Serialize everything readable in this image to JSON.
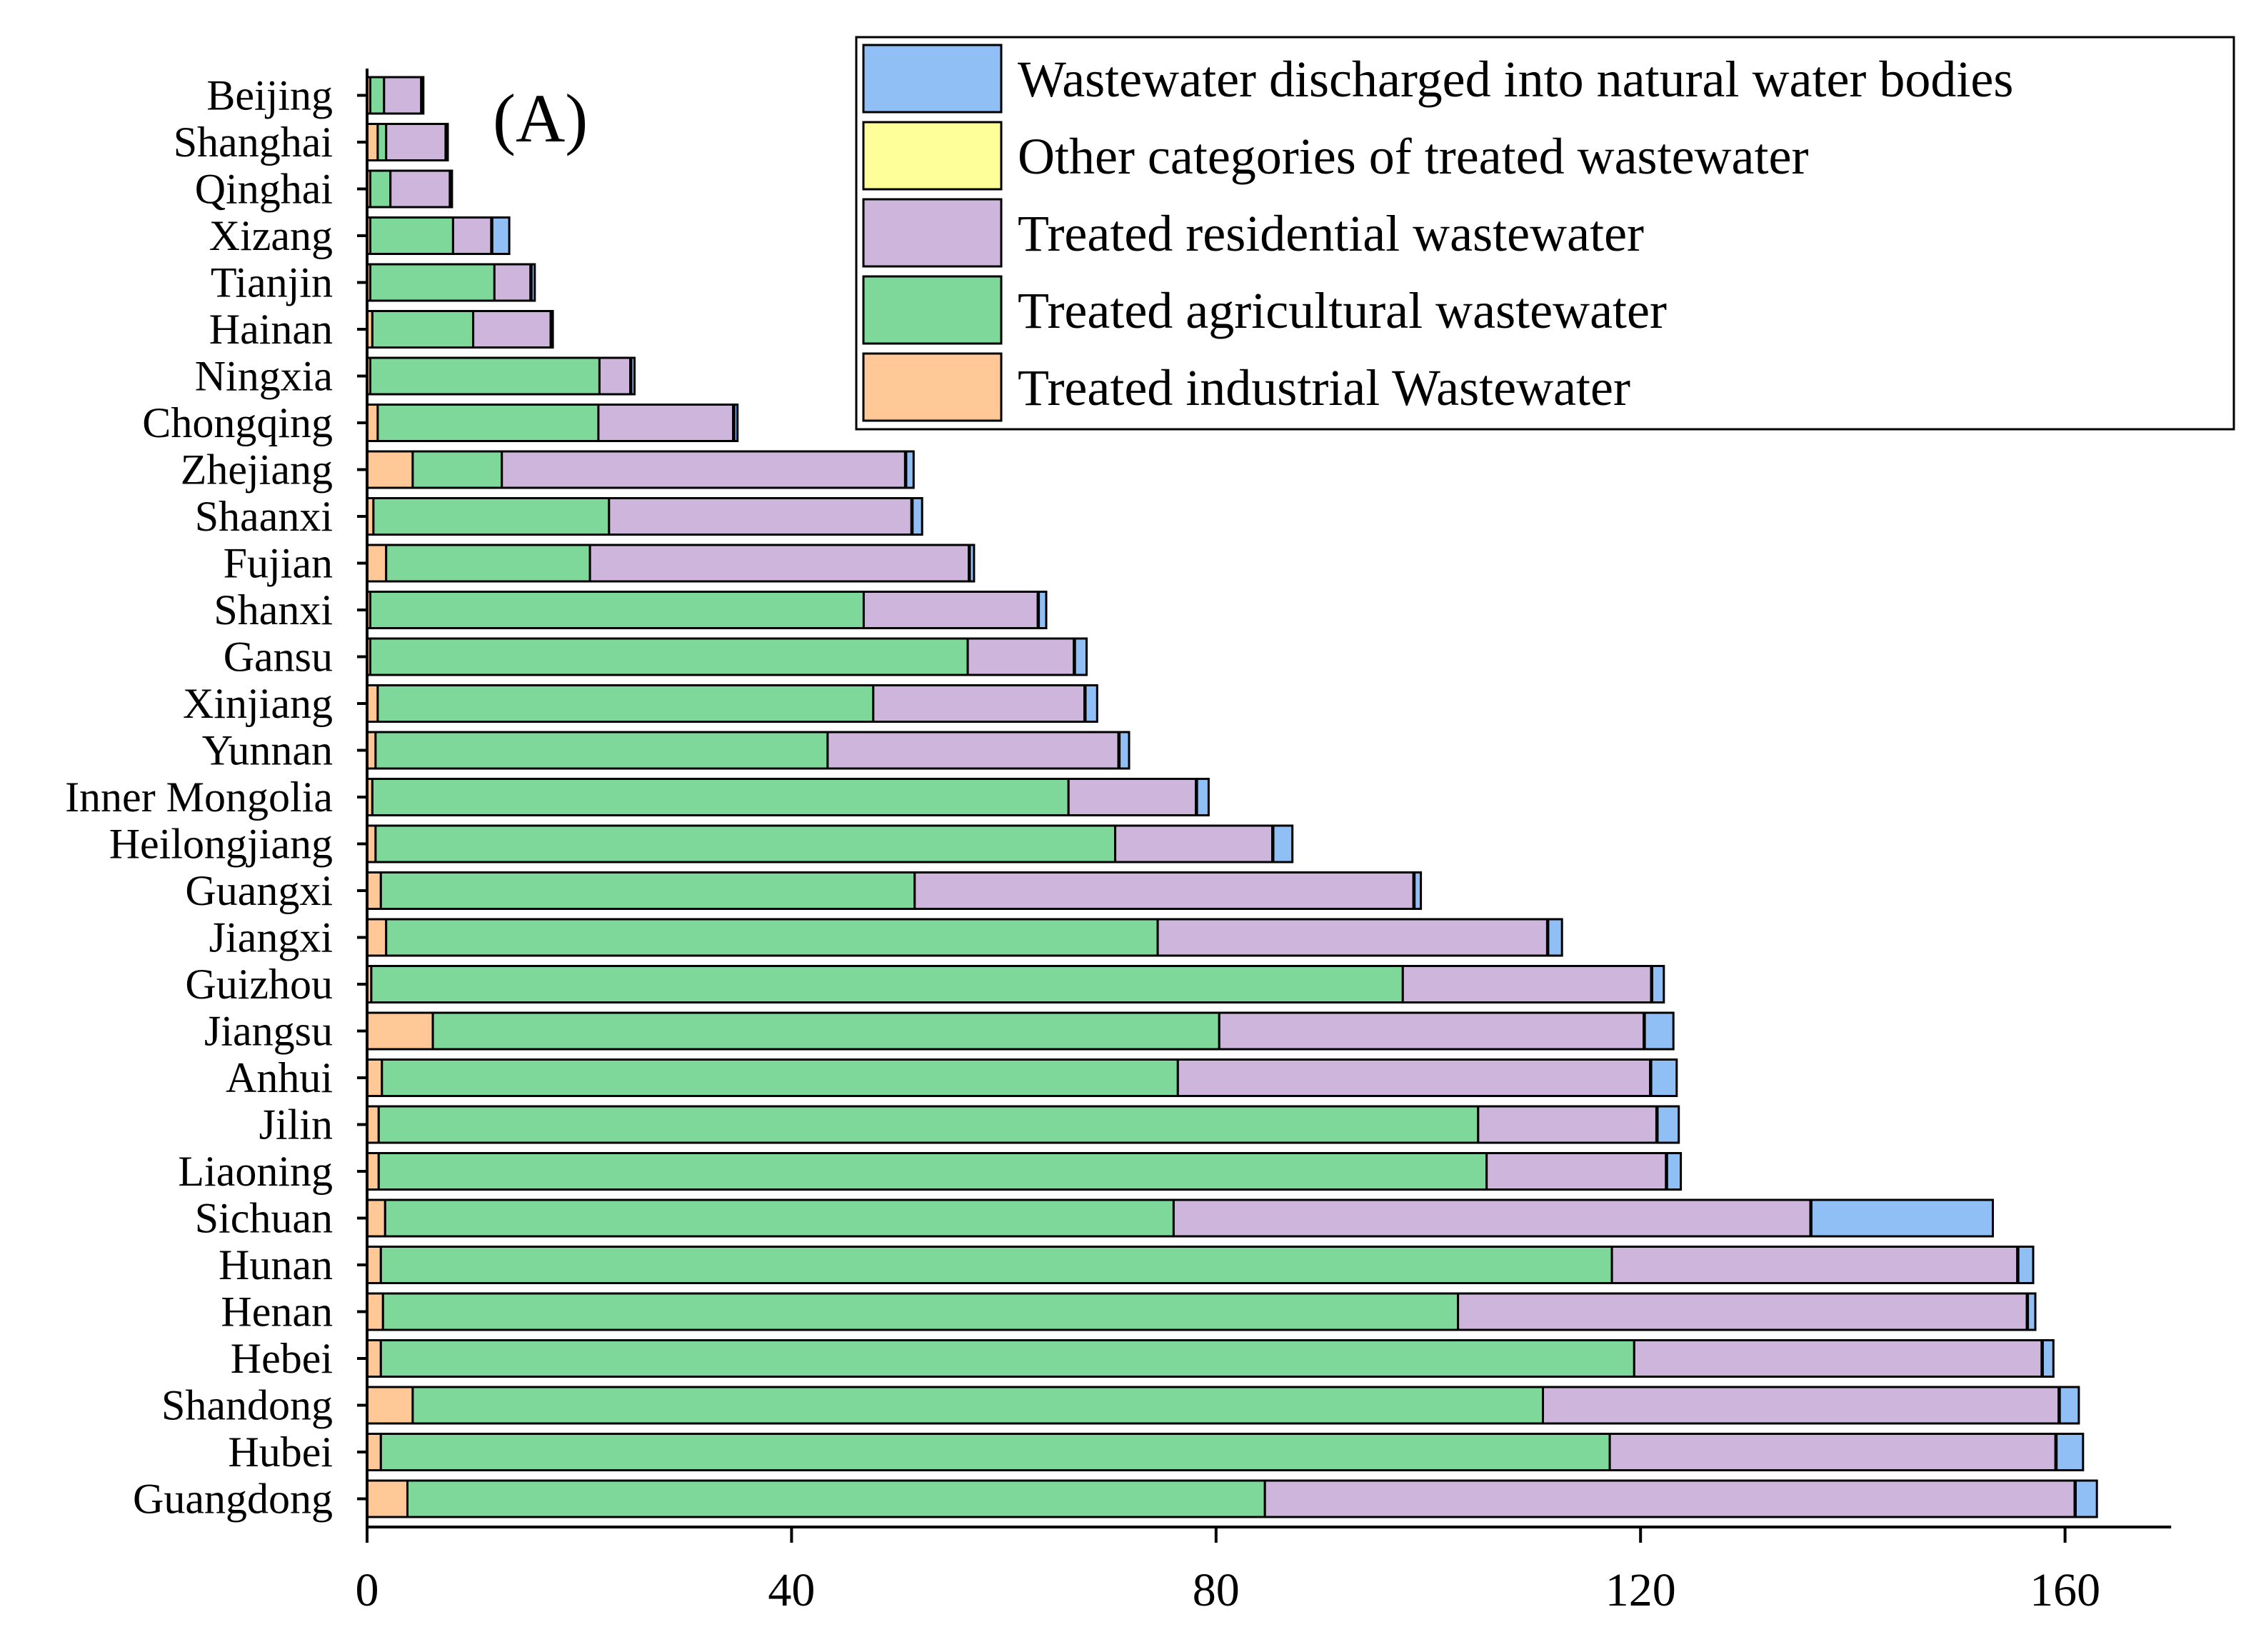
{
  "chart_data": {
    "type": "bar",
    "orientation": "horizontal",
    "stacked": true,
    "panel_label": "(A)",
    "title": "",
    "xlabel": "",
    "ylabel": "",
    "xlim": [
      0,
      170
    ],
    "xticks": [
      0,
      40,
      80,
      120,
      160
    ],
    "grid": false,
    "legend_position": "top-right",
    "categories": [
      "Beijing",
      "Shanghai",
      "Qinghai",
      "Xizang",
      "Tianjin",
      "Hainan",
      "Ningxia",
      "Chongqing",
      "Zhejiang",
      "Shaanxi",
      "Fujian",
      "Shanxi",
      "Gansu",
      "Xinjiang",
      "Yunnan",
      "Inner Mongolia",
      "Heilongjiang",
      "Guangxi",
      "Jiangxi",
      "Guizhou",
      "Jiangsu",
      "Anhui",
      "Jilin",
      "Liaoning",
      "Sichuan",
      "Hunan",
      "Henan",
      "Hebei",
      "Shandong",
      "Hubei",
      "Guangdong"
    ],
    "series": [
      {
        "name": "Treated industrial Wastewater",
        "color": "#FFC896",
        "values": [
          0.3,
          1.0,
          0.3,
          0.3,
          0.3,
          0.5,
          0.3,
          1.0,
          4.3,
          0.6,
          1.8,
          0.3,
          0.3,
          1.0,
          0.8,
          0.5,
          0.8,
          1.3,
          1.8,
          0.4,
          6.2,
          1.4,
          1.1,
          1.1,
          1.7,
          1.3,
          1.5,
          1.3,
          4.3,
          1.3,
          3.8
        ]
      },
      {
        "name": "Treated agricultural wastewater",
        "color": "#7ED89A",
        "values": [
          1.3,
          0.8,
          1.9,
          7.8,
          11.7,
          9.5,
          21.6,
          20.8,
          8.4,
          22.2,
          19.2,
          46.5,
          56.3,
          46.7,
          42.6,
          65.6,
          69.7,
          50.3,
          72.7,
          97.2,
          74.1,
          75.0,
          103.6,
          104.4,
          74.3,
          116.0,
          101.3,
          118.1,
          106.5,
          115.8,
          80.8
        ]
      },
      {
        "name": "Treated residential wastewater",
        "color": "#CDB5DB",
        "values": [
          3.5,
          5.6,
          5.6,
          3.6,
          3.4,
          7.3,
          2.9,
          12.7,
          38.0,
          28.5,
          35.7,
          16.4,
          10.0,
          19.9,
          27.4,
          12.0,
          14.8,
          47.0,
          36.7,
          23.4,
          40.0,
          44.5,
          16.8,
          16.9,
          60.0,
          38.2,
          53.6,
          38.4,
          48.6,
          42.0,
          76.3
        ]
      },
      {
        "name": "Other categories of treated wastewater",
        "color": "#FFFF99",
        "values": [
          0.1,
          0.1,
          0.1,
          0.1,
          0.1,
          0.1,
          0.1,
          0.1,
          0.1,
          0.1,
          0.1,
          0.1,
          0.1,
          0.1,
          0.1,
          0.1,
          0.1,
          0.1,
          0.1,
          0.1,
          0.1,
          0.1,
          0.1,
          0.1,
          0.1,
          0.1,
          0.1,
          0.1,
          0.1,
          0.1,
          0.1
        ]
      },
      {
        "name": "Wastewater discharged into natural water bodies",
        "color": "#8FBFF5",
        "values": [
          0.1,
          0.1,
          0.1,
          1.6,
          0.3,
          0.1,
          0.3,
          0.3,
          0.7,
          0.9,
          0.4,
          0.7,
          1.1,
          1.1,
          0.9,
          1.1,
          1.8,
          0.6,
          1.3,
          1.1,
          2.7,
          2.4,
          2.0,
          1.3,
          17.1,
          1.4,
          0.7,
          1.0,
          1.8,
          2.5,
          2.0
        ]
      }
    ]
  }
}
